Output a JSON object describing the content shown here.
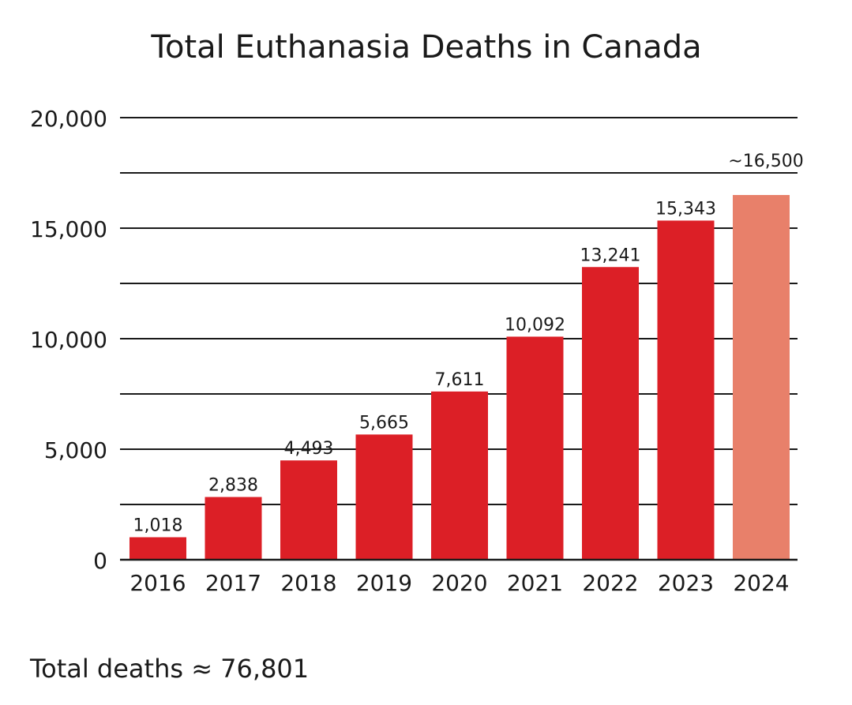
{
  "chart_data": {
    "type": "bar",
    "title": "Total Euthanasia Deaths in Canada",
    "categories": [
      "2016",
      "2017",
      "2018",
      "2019",
      "2020",
      "2021",
      "2022",
      "2023",
      "2024"
    ],
    "values": [
      1018,
      2838,
      4493,
      5665,
      7611,
      10092,
      13241,
      15343,
      16500
    ],
    "data_labels": [
      "1,018",
      "2,838",
      "4,493",
      "5,665",
      "7,611",
      "10,092",
      "13,241",
      "15,343",
      "~16,500"
    ],
    "estimated": [
      false,
      false,
      false,
      false,
      false,
      false,
      false,
      false,
      true
    ],
    "ylim": [
      0,
      20000
    ],
    "y_ticks": [
      0,
      5000,
      10000,
      15000,
      20000
    ],
    "y_tick_labels": [
      "0",
      "5,000",
      "10,000",
      "15,000",
      "20,000"
    ],
    "y_gridlines": [
      2500,
      5000,
      7500,
      10000,
      12500,
      15000,
      17500,
      20000
    ],
    "grid": true,
    "legend": "none",
    "colors": {
      "bar": "#dc1f26",
      "estimate_bar": "#e8806a",
      "grid": "#1a1a1a"
    },
    "footer": "Total deaths ≈ 76,801"
  }
}
